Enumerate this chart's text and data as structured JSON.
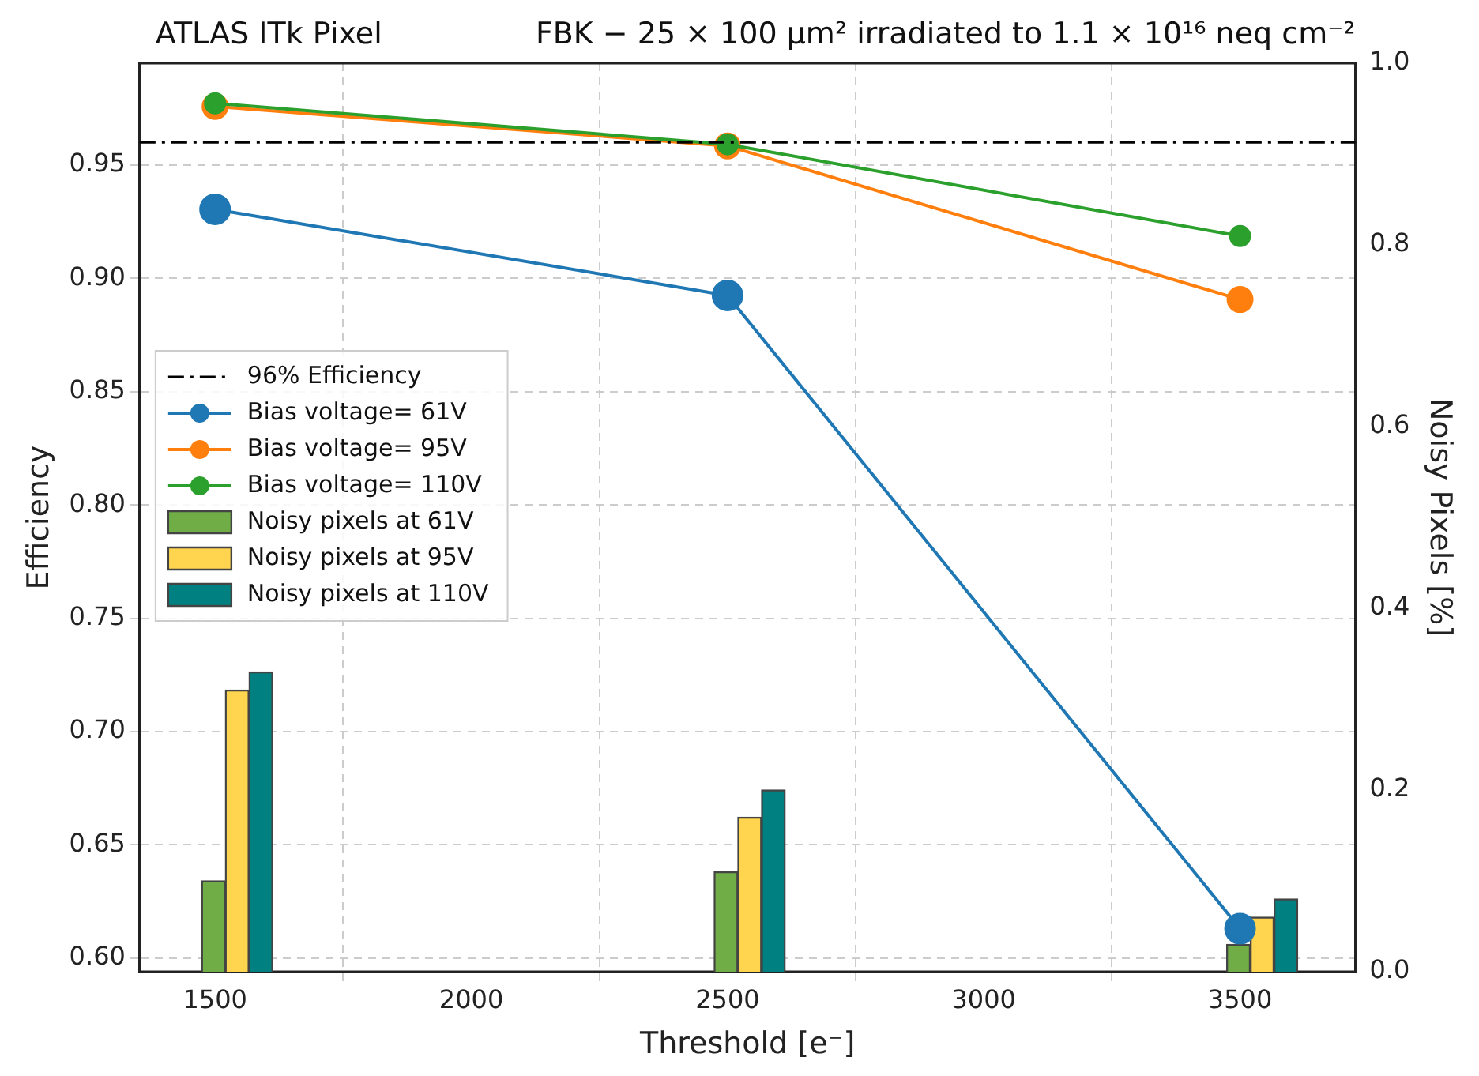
{
  "chart_data": {
    "type": "line",
    "title": "ATLAS ITk Pixel",
    "subtitle": "FBK − 25 × 100 µm² irradiated to 1.1 × 10¹⁶ neq cm⁻²",
    "xlabel": "Threshold [e⁻]",
    "ylabel": "Efficiency",
    "y2label": "Noisy Pixels [%]",
    "x": [
      1500,
      2500,
      3500
    ],
    "xlim": [
      1353,
      3725
    ],
    "xticks": [
      1500,
      2000,
      2500,
      3000,
      3500
    ],
    "ylim": [
      0.594,
      0.995
    ],
    "yticks": [
      {
        "value": 0.6,
        "label": "0.60"
      },
      0.65,
      {
        "value": 0.7,
        "label": "0.70"
      },
      0.75,
      {
        "value": 0.8,
        "label": "0.80"
      },
      0.85,
      {
        "value": 0.9,
        "label": "0.90"
      },
      0.95
    ],
    "y2lim": [
      0,
      1
    ],
    "y2ticks": [
      {
        "value": 0,
        "label": "0.0"
      },
      0.2,
      0.4,
      0.6,
      0.8,
      {
        "value": 1,
        "label": "1.0"
      }
    ],
    "series": [
      {
        "name": "Bias voltage= 61V",
        "color": "#1f77b4",
        "values": [
          0.9305,
          0.8925,
          0.613
        ]
      },
      {
        "name": "Bias voltage= 95V",
        "color": "#ff7f0e",
        "values": [
          0.9759,
          0.9585,
          0.8907
        ]
      },
      {
        "name": "Bias voltage= 110V",
        "color": "#2ca02c",
        "values": [
          0.9773,
          0.9592,
          0.9187
        ]
      },
      {
        "name": "Noisy pixels at 61V",
        "type": "bar",
        "axis": "y2",
        "color": "#70ad47",
        "values": [
          0.1,
          0.11,
          0.03
        ]
      },
      {
        "name": "Noisy pixels at 95V",
        "type": "bar",
        "axis": "y2",
        "color": "#ffd54f",
        "values": [
          0.31,
          0.17,
          0.06
        ]
      },
      {
        "name": "Noisy pixels at 110V",
        "type": "bar",
        "axis": "y2",
        "color": "#008080",
        "values": [
          0.33,
          0.2,
          0.08
        ]
      }
    ],
    "ref_lines": [
      {
        "axis": "y",
        "value": 0.96,
        "label": "96% Efficiency",
        "color": "#000000",
        "line_style": "dashdot"
      }
    ],
    "grid": true,
    "legend": "center left",
    "marker": "circle"
  }
}
